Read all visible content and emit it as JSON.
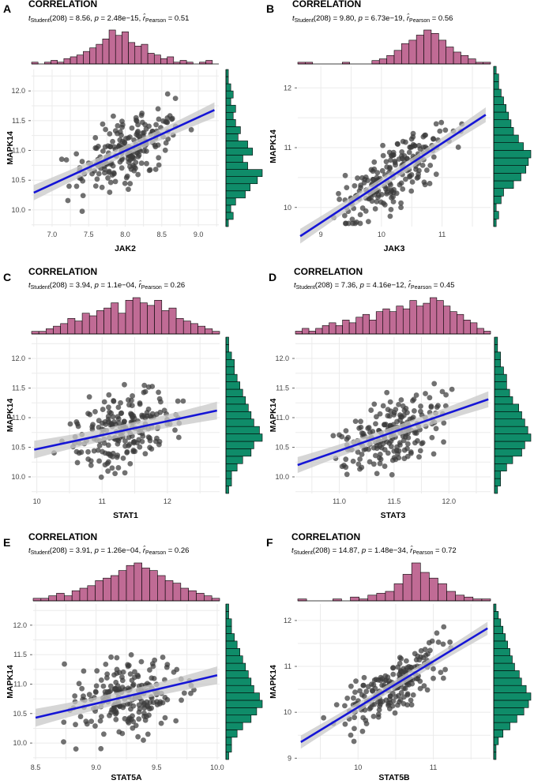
{
  "figure": {
    "corr_title": "CORRELATION",
    "y_gene": "MAPK14",
    "colors": {
      "hist_top": "#c06b95",
      "hist_right": "#0f8c69",
      "point": "#3a3a3a",
      "line": "#1515d6",
      "band": "#c8c8c8",
      "grid": "#ebebeb"
    }
  },
  "chart_data": [
    {
      "type": "scatter",
      "panel": "A",
      "stats": {
        "t": "8.56",
        "df": "208",
        "p": "2.48e−15",
        "r": "0.51"
      },
      "xlabel": "JAK2",
      "ylabel": "MAPK14",
      "xlim": [
        6.72,
        9.28
      ],
      "ylim": [
        9.72,
        12.36
      ],
      "xticks": [
        "7.0",
        "7.5",
        "8.0",
        "8.5",
        "9.0"
      ],
      "yticks": [
        "10.0",
        "10.5",
        "11.0",
        "11.5",
        "12.0"
      ],
      "fit": {
        "x1": 6.75,
        "y1": 10.29,
        "x2": 9.22,
        "y2": 11.68
      },
      "top_hist": [
        1,
        0,
        1,
        2,
        1,
        3,
        4,
        5,
        7,
        9,
        11,
        14,
        19,
        16,
        18,
        12,
        10,
        11,
        6,
        5,
        3,
        4,
        1,
        2,
        1,
        0,
        1,
        2,
        0
      ],
      "right_hist": [
        1,
        3,
        2,
        4,
        8,
        10,
        13,
        15,
        9,
        7,
        11,
        9,
        5,
        6,
        4,
        3,
        4,
        2,
        3,
        2,
        1,
        1
      ],
      "seed": 11
    },
    {
      "type": "scatter",
      "panel": "B",
      "stats": {
        "t": "9.80",
        "df": "208",
        "p": "6.73e−19",
        "r": "0.56"
      },
      "xlabel": "JAK3",
      "ylabel": "MAPK14",
      "xlim": [
        8.62,
        11.8
      ],
      "ylim": [
        9.68,
        12.36
      ],
      "xticks": [
        "9",
        "10",
        "11"
      ],
      "yticks": [
        "10",
        "11",
        "12"
      ],
      "fit": {
        "x1": 8.66,
        "y1": 9.52,
        "x2": 11.72,
        "y2": 11.55
      },
      "top_hist": [
        1,
        1,
        0,
        0,
        0,
        0,
        1,
        0,
        0,
        0,
        2,
        3,
        5,
        8,
        12,
        14,
        17,
        20,
        18,
        14,
        10,
        7,
        5,
        3,
        1,
        1
      ],
      "right_hist": [
        1,
        2,
        1,
        3,
        4,
        8,
        11,
        13,
        14,
        15,
        12,
        10,
        8,
        7,
        6,
        5,
        4,
        3,
        2,
        2,
        1
      ],
      "seed": 23
    },
    {
      "type": "scatter",
      "panel": "C",
      "stats": {
        "t": "3.94",
        "df": "208",
        "p": "1.1e−04",
        "r": "0.26"
      },
      "xlabel": "STAT1",
      "ylabel": "MAPK14",
      "xlim": [
        9.92,
        12.8
      ],
      "ylim": [
        9.72,
        12.36
      ],
      "xticks": [
        "10",
        "11",
        "12"
      ],
      "yticks": [
        "10.0",
        "10.5",
        "11.0",
        "11.5",
        "12.0"
      ],
      "fit": {
        "x1": 9.96,
        "y1": 10.46,
        "x2": 12.76,
        "y2": 11.12
      },
      "top_hist": [
        1,
        1,
        2,
        3,
        4,
        6,
        5,
        8,
        7,
        9,
        10,
        12,
        8,
        13,
        14,
        12,
        11,
        13,
        9,
        10,
        6,
        5,
        4,
        3,
        2,
        1
      ],
      "right_hist": [
        1,
        2,
        2,
        4,
        6,
        9,
        10,
        13,
        12,
        10,
        9,
        8,
        7,
        6,
        5,
        4,
        3,
        3,
        2,
        1,
        1
      ],
      "seed": 37
    },
    {
      "type": "scatter",
      "panel": "D",
      "stats": {
        "t": "7.36",
        "df": "208",
        "p": "4.16e−12",
        "r": "0.45"
      },
      "xlabel": "STAT3",
      "ylabel": "MAPK14",
      "xlim": [
        10.6,
        12.38
      ],
      "ylim": [
        9.72,
        12.36
      ],
      "xticks": [
        "11.0",
        "11.5",
        "12.0"
      ],
      "yticks": [
        "10.0",
        "10.5",
        "11.0",
        "11.5",
        "12.0"
      ],
      "fit": {
        "x1": 10.62,
        "y1": 10.2,
        "x2": 12.36,
        "y2": 11.31
      },
      "top_hist": [
        1,
        2,
        1,
        2,
        3,
        4,
        3,
        5,
        4,
        6,
        7,
        5,
        8,
        9,
        8,
        10,
        9,
        12,
        10,
        11,
        13,
        12,
        10,
        8,
        7,
        5,
        4,
        2,
        1
      ],
      "right_hist": [
        1,
        2,
        2,
        4,
        6,
        9,
        10,
        12,
        11,
        10,
        9,
        8,
        6,
        5,
        4,
        4,
        3,
        2,
        2,
        1,
        1
      ],
      "seed": 53
    },
    {
      "type": "scatter",
      "panel": "E",
      "stats": {
        "t": "3.91",
        "df": "208",
        "p": "1.26e−04",
        "r": "0.26"
      },
      "xlabel": "STAT5A",
      "ylabel": "MAPK14",
      "xlim": [
        8.48,
        10.02
      ],
      "ylim": [
        9.72,
        12.36
      ],
      "xticks": [
        "8.5",
        "9.0",
        "9.5",
        "10.0"
      ],
      "yticks": [
        "10.0",
        "10.5",
        "11.0",
        "11.5",
        "12.0"
      ],
      "fit": {
        "x1": 8.5,
        "y1": 10.43,
        "x2": 10.0,
        "y2": 11.15
      },
      "top_hist": [
        1,
        1,
        2,
        3,
        2,
        4,
        5,
        6,
        8,
        9,
        10,
        12,
        14,
        15,
        13,
        12,
        10,
        8,
        7,
        5,
        4,
        3,
        2,
        1
      ],
      "right_hist": [
        1,
        2,
        2,
        4,
        6,
        9,
        11,
        13,
        12,
        10,
        9,
        8,
        7,
        6,
        5,
        4,
        3,
        2,
        2,
        1,
        1
      ],
      "seed": 71
    },
    {
      "type": "scatter",
      "panel": "F",
      "stats": {
        "t": "14.87",
        "df": "208",
        "p": "1.48e−34",
        "r": "0.72"
      },
      "xlabel": "STAT5B",
      "ylabel": "MAPK14",
      "xlim": [
        9.2,
        11.76
      ],
      "ylim": [
        8.97,
        12.36
      ],
      "xticks": [
        "10",
        "11"
      ],
      "yticks": [
        "9",
        "10",
        "11",
        "12"
      ],
      "fit": {
        "x1": 9.24,
        "y1": 9.35,
        "x2": 11.72,
        "y2": 11.83
      },
      "top_hist": [
        1,
        0,
        0,
        0,
        1,
        0,
        2,
        1,
        3,
        4,
        5,
        9,
        14,
        20,
        15,
        12,
        9,
        5,
        3,
        2,
        1,
        1
      ],
      "right_hist": [
        1,
        1,
        2,
        4,
        7,
        10,
        13,
        15,
        16,
        14,
        12,
        11,
        9,
        8,
        7,
        6,
        5,
        4,
        3,
        2,
        1
      ],
      "seed": 89
    }
  ]
}
